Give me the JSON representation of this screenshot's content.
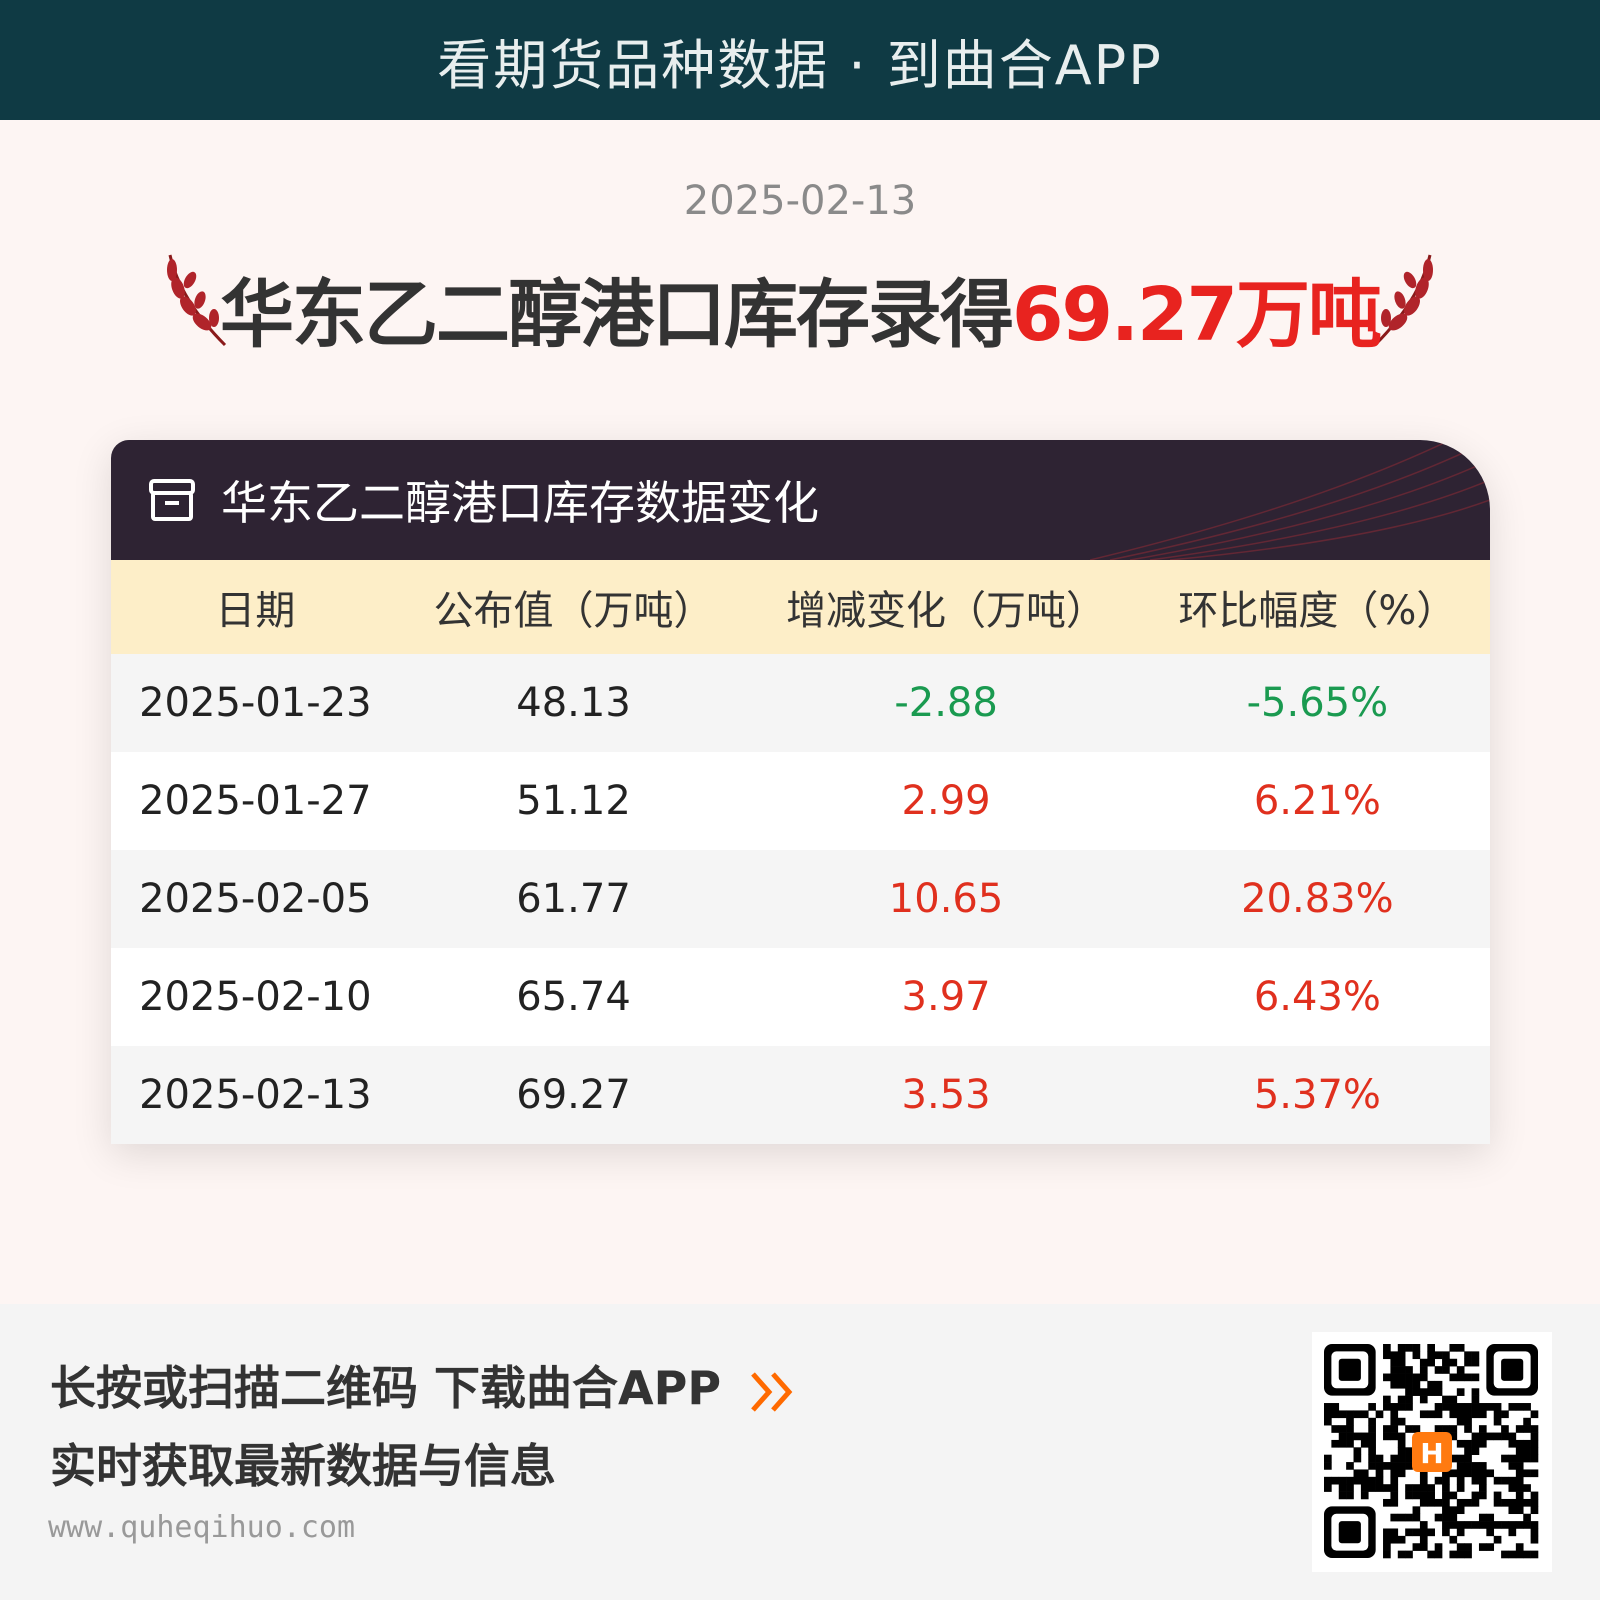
{
  "banner": {
    "text": "看期货品种数据 · 到曲合APP"
  },
  "date": "2025-02-13",
  "headline": {
    "prefix": "华东乙二醇港口库存录得",
    "highlight": "69.27万吨"
  },
  "card": {
    "title": "华东乙二醇港口库存数据变化",
    "icon": "archive-box-icon",
    "columns": [
      "日期",
      "公布值（万吨）",
      "增减变化（万吨）",
      "环比幅度（%）"
    ],
    "rows": [
      {
        "date": "2025-01-23",
        "value": "48.13",
        "change": "-2.88",
        "pct": "-5.65%",
        "dir": "neg"
      },
      {
        "date": "2025-01-27",
        "value": "51.12",
        "change": "2.99",
        "pct": "6.21%",
        "dir": "pos"
      },
      {
        "date": "2025-02-05",
        "value": "61.77",
        "change": "10.65",
        "pct": "20.83%",
        "dir": "pos"
      },
      {
        "date": "2025-02-10",
        "value": "65.74",
        "change": "3.97",
        "pct": "6.43%",
        "dir": "pos"
      },
      {
        "date": "2025-02-13",
        "value": "69.27",
        "change": "3.53",
        "pct": "5.37%",
        "dir": "pos"
      }
    ]
  },
  "footer": {
    "line1": "长按或扫描二维码  下载曲合APP",
    "line2": "实时获取最新数据与信息",
    "site": "www.quheqihuo.com",
    "arrow_icon": "double-chevron-right-icon"
  },
  "colors": {
    "banner": "#0f3a44",
    "up": "#e0301e",
    "down": "#1a9a50",
    "highlight": "#e8231f",
    "accent": "#ff6a00"
  }
}
